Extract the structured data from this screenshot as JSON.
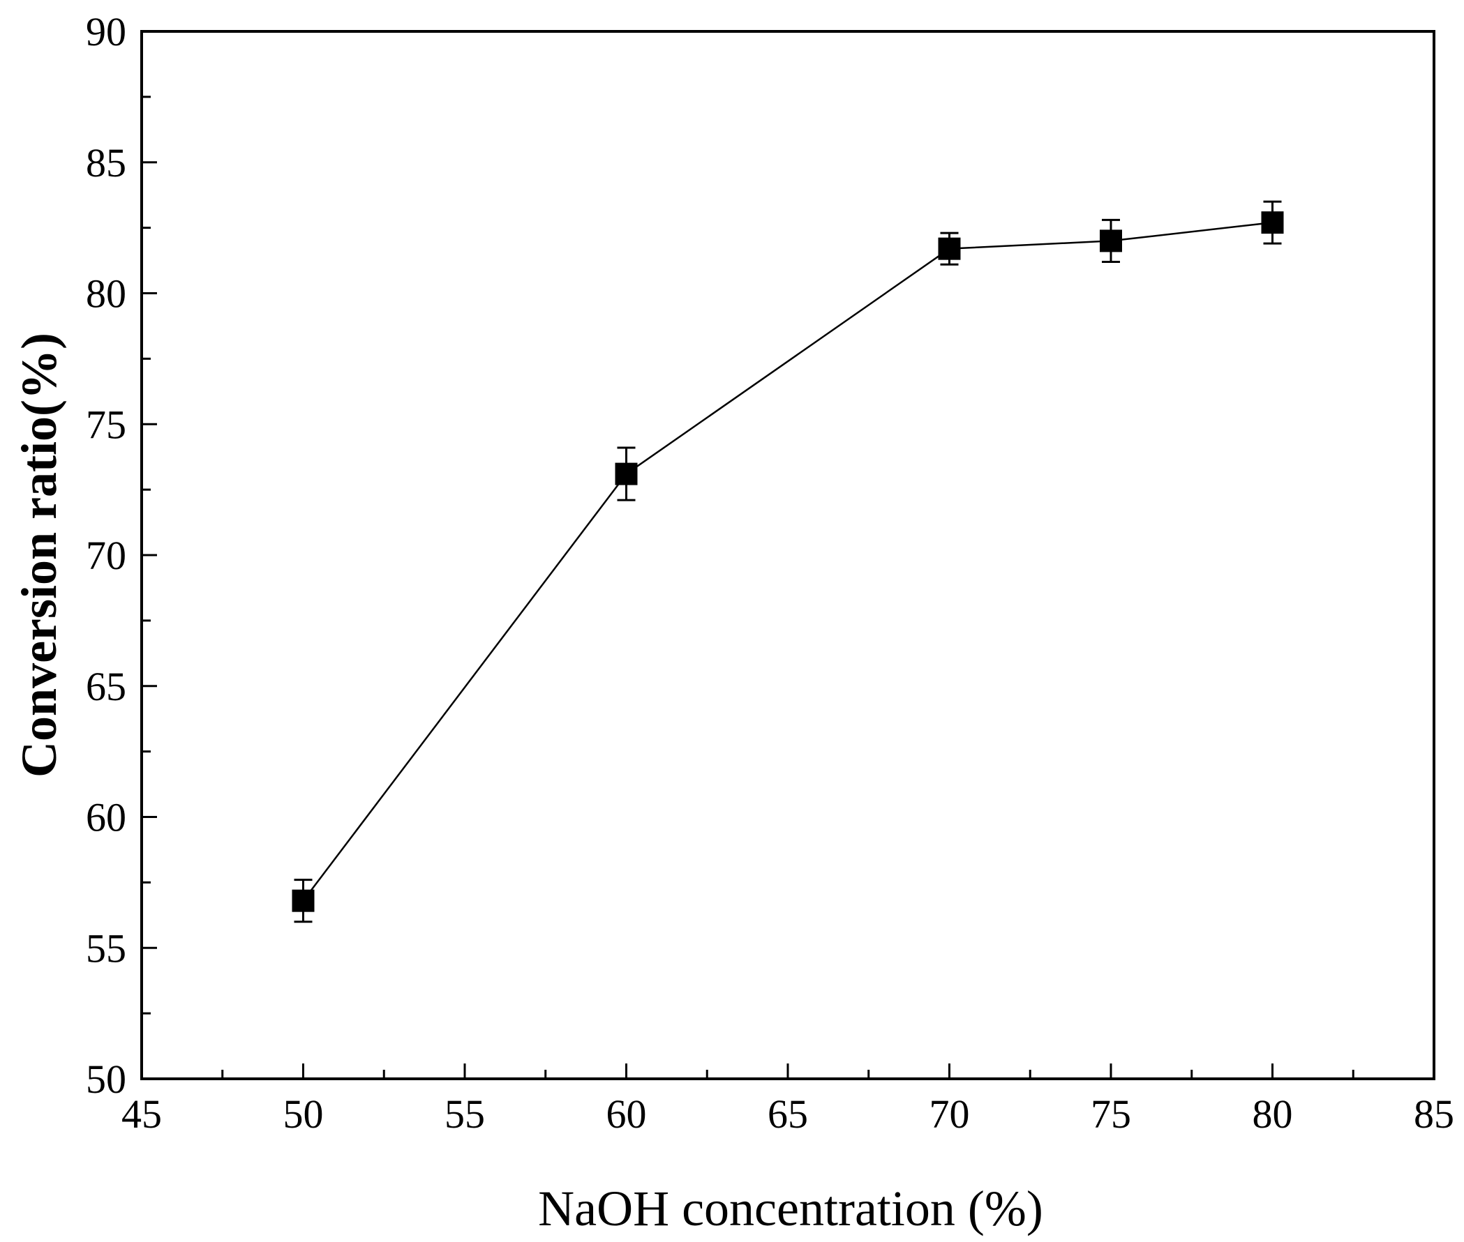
{
  "chart_data": {
    "type": "line",
    "title": "",
    "xlabel": "NaOH concentration (%)",
    "ylabel": "Conversion ratio(%)",
    "xlim": [
      45,
      85
    ],
    "ylim": [
      50,
      90
    ],
    "x_major_ticks": [
      45,
      50,
      55,
      60,
      65,
      70,
      75,
      80,
      85
    ],
    "y_major_ticks": [
      50,
      55,
      60,
      65,
      70,
      75,
      80,
      85,
      90
    ],
    "x_minor_step": 2.5,
    "y_minor_step": 2.5,
    "grid": false,
    "legend": "none",
    "series": [
      {
        "name": "Conversion ratio",
        "marker": "filled-square",
        "color": "#000000",
        "x": [
          50,
          60,
          70,
          75,
          80
        ],
        "y": [
          56.8,
          73.1,
          81.7,
          82.0,
          82.7
        ],
        "error": [
          0.8,
          1.0,
          0.6,
          0.8,
          0.8
        ]
      }
    ]
  }
}
